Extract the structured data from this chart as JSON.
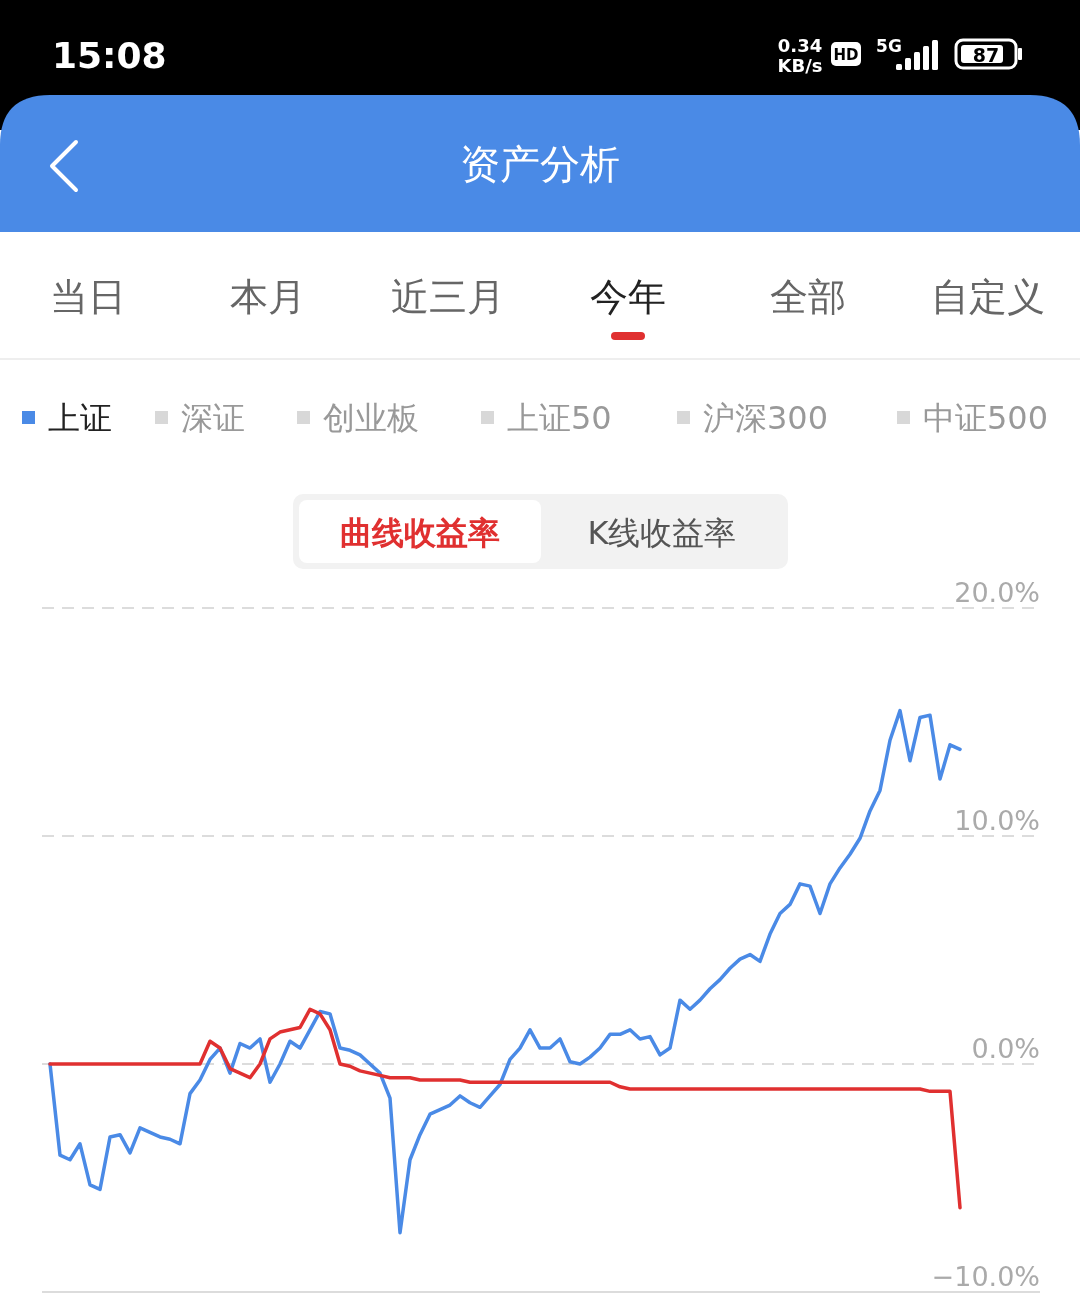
{
  "chart_data": {
    "type": "line",
    "title": "资产分析",
    "annotations": [
      "15:08",
      "0.34",
      "KB/s",
      "5G",
      "87",
      "当日",
      "本月",
      "近三月",
      "今年",
      "全部",
      "自定义",
      "深证",
      "创业板",
      "上证50",
      "沪深300",
      "中证500",
      "曲线收益率",
      "K线收益率",
      "HD"
    ],
    "categories": [
      null,
      null,
      null,
      null,
      null,
      null,
      null,
      null,
      null,
      null,
      null,
      null,
      null,
      null,
      null,
      null,
      null,
      null,
      null,
      null,
      null,
      null,
      null,
      null,
      null,
      null,
      null,
      null,
      null,
      null,
      null,
      null,
      null,
      null,
      null,
      null,
      null,
      null,
      null,
      null,
      null,
      null,
      null,
      null,
      null,
      null,
      null,
      null,
      null,
      null,
      null,
      null,
      null,
      null,
      null,
      null,
      null,
      null,
      null,
      null,
      null,
      null,
      null,
      null,
      null,
      null,
      null,
      null,
      null,
      null,
      null,
      null,
      null,
      null,
      null,
      null,
      null,
      null,
      null,
      null,
      null,
      null,
      null,
      null,
      null,
      null,
      null,
      null,
      null,
      null,
      null,
      null
    ],
    "series": [
      {
        "name": "上证",
        "color": "#4a8ae6",
        "values": [
          0,
          -4.0,
          -4.2,
          -3.5,
          -5.3,
          -5.5,
          -3.2,
          -3.1,
          -3.9,
          -2.8,
          -3.0,
          -3.2,
          -3.3,
          -3.5,
          -1.3,
          -0.7,
          0.2,
          0.7,
          -0.4,
          0.9,
          0.7,
          1.1,
          -0.8,
          0,
          1.0,
          0.7,
          1.5,
          2.3,
          2.2,
          0.7,
          0.6,
          0.4,
          0,
          -0.4,
          -1.5,
          -7.4,
          -4.2,
          -3.1,
          -2.2,
          -2.0,
          -1.8,
          -1.4,
          -1.7,
          -1.9,
          -1.4,
          -0.9,
          0.2,
          0.7,
          1.5,
          0.7,
          0.7,
          1.1,
          0.1,
          0,
          0.3,
          0.7,
          1.3,
          1.3,
          1.5,
          1.1,
          1.2,
          0.4,
          0.7,
          2.8,
          2.4,
          2.8,
          3.3,
          3.7,
          4.2,
          4.6,
          4.8,
          4.5,
          5.7,
          6.6,
          7.0,
          7.9,
          7.8,
          6.6,
          7.9,
          8.6,
          9.2,
          9.9,
          11.1,
          12.0,
          14.2,
          15.5,
          13.3,
          15.2,
          15.3,
          12.5,
          14.0,
          13.8
        ]
      },
      {
        "color": "#e03030",
        "values": [
          0,
          0,
          0,
          0,
          0,
          0,
          0,
          0,
          0,
          0,
          0,
          0,
          0,
          0,
          0,
          0,
          1.0,
          0.7,
          -0.2,
          -0.4,
          -0.6,
          0,
          1.1,
          1.4,
          1.5,
          1.6,
          2.4,
          2.2,
          1.5,
          0,
          -0.1,
          -0.3,
          -0.4,
          -0.5,
          -0.6,
          -0.6,
          -0.6,
          -0.7,
          -0.7,
          -0.7,
          -0.7,
          -0.7,
          -0.8,
          -0.8,
          -0.8,
          -0.8,
          -0.8,
          -0.8,
          -0.8,
          -0.8,
          -0.8,
          -0.8,
          -0.8,
          -0.8,
          -0.8,
          -0.8,
          -0.8,
          -1.0,
          -1.1,
          -1.1,
          -1.1,
          -1.1,
          -1.1,
          -1.1,
          -1.1,
          -1.1,
          -1.1,
          -1.1,
          -1.1,
          -1.1,
          -1.1,
          -1.1,
          -1.1,
          -1.1,
          -1.1,
          -1.1,
          -1.1,
          -1.1,
          -1.1,
          -1.1,
          -1.1,
          -1.1,
          -1.1,
          -1.1,
          -1.1,
          -1.1,
          -1.1,
          -1.1,
          -1.2,
          -1.2,
          -1.2,
          -6.3
        ]
      }
    ],
    "ylim": [
      -10,
      20
    ],
    "yticks": [
      {
        "value": 20,
        "label": "20.0%"
      },
      {
        "value": 10,
        "label": "10.0%"
      },
      {
        "value": 0,
        "label": "0.0%"
      },
      {
        "value": -10,
        "label": "−10.0%"
      }
    ],
    "tick_labels": "y",
    "grid": "y",
    "legend": "top left",
    "marker": "none",
    "line_style": "solid"
  }
}
